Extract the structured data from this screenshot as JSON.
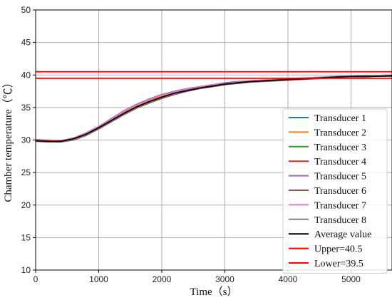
{
  "chart_data": {
    "type": "line",
    "title": "",
    "xlabel": "Time（s）",
    "ylabel": "Chamber temperature（℃）",
    "xlim": [
      0,
      5650
    ],
    "ylim": [
      10,
      50
    ],
    "xticks": [
      "0",
      "1000",
      "2000",
      "3000",
      "4000",
      "5000"
    ],
    "yticks": [
      "10",
      "15",
      "20",
      "25",
      "30",
      "35",
      "40",
      "45",
      "50"
    ],
    "grid": true,
    "legend_position": "bottom-right",
    "x": [
      0,
      200,
      400,
      600,
      800,
      1000,
      1200,
      1400,
      1600,
      1800,
      2000,
      2200,
      2400,
      2600,
      2800,
      3000,
      3200,
      3400,
      3600,
      3800,
      4000,
      4200,
      4400,
      4600,
      4800,
      5000,
      5200,
      5400,
      5650
    ],
    "series": [
      {
        "name": "Transducer 1",
        "color": "#1f77b4",
        "values": [
          29.9,
          29.8,
          29.8,
          30.2,
          30.9,
          31.9,
          33.0,
          34.1,
          35.1,
          35.9,
          36.6,
          37.2,
          37.6,
          38.0,
          38.3,
          38.6,
          38.8,
          39.0,
          39.1,
          39.2,
          39.3,
          39.4,
          39.5,
          39.6,
          39.7,
          39.8,
          39.8,
          39.8,
          39.9
        ]
      },
      {
        "name": "Transducer 2",
        "color": "#ff7f0e",
        "values": [
          30.1,
          30.0,
          29.9,
          30.3,
          31.0,
          32.0,
          33.1,
          34.2,
          35.2,
          36.0,
          36.7,
          37.3,
          37.7,
          38.1,
          38.4,
          38.7,
          38.9,
          39.1,
          39.2,
          39.3,
          39.4,
          39.5,
          39.6,
          39.7,
          39.8,
          39.8,
          39.9,
          39.9,
          40.0
        ]
      },
      {
        "name": "Transducer 3",
        "color": "#2ca02c",
        "values": [
          29.9,
          29.8,
          29.8,
          30.1,
          30.8,
          31.8,
          32.9,
          34.0,
          35.0,
          35.8,
          36.5,
          37.1,
          37.6,
          38.0,
          38.3,
          38.6,
          38.8,
          39.0,
          39.1,
          39.2,
          39.3,
          39.4,
          39.5,
          39.6,
          39.7,
          39.7,
          39.8,
          39.8,
          39.9
        ]
      },
      {
        "name": "Transducer 4",
        "color": "#d62728",
        "values": [
          30.0,
          29.9,
          29.8,
          30.2,
          30.9,
          31.9,
          33.0,
          34.1,
          35.1,
          35.9,
          36.6,
          37.2,
          37.7,
          38.1,
          38.4,
          38.6,
          38.8,
          39.0,
          39.1,
          39.2,
          39.3,
          39.4,
          39.5,
          39.6,
          39.7,
          39.8,
          39.8,
          39.9,
          39.9
        ]
      },
      {
        "name": "Transducer 5",
        "color": "#9467bd",
        "values": [
          30.0,
          29.9,
          29.9,
          30.3,
          31.1,
          32.1,
          33.3,
          34.5,
          35.5,
          36.3,
          37.0,
          37.5,
          37.9,
          38.2,
          38.5,
          38.8,
          39.0,
          39.1,
          39.2,
          39.3,
          39.4,
          39.5,
          39.6,
          39.7,
          39.8,
          39.8,
          39.9,
          39.9,
          40.0
        ]
      },
      {
        "name": "Transducer 6",
        "color": "#8c564b",
        "values": [
          29.8,
          29.7,
          29.7,
          30.0,
          30.7,
          31.7,
          32.8,
          33.9,
          34.9,
          35.7,
          36.4,
          37.0,
          37.5,
          37.9,
          38.2,
          38.5,
          38.7,
          38.9,
          39.0,
          39.1,
          39.2,
          39.3,
          39.4,
          39.5,
          39.6,
          39.7,
          39.7,
          39.8,
          39.8
        ]
      },
      {
        "name": "Transducer 7",
        "color": "#e377c2",
        "values": [
          30.0,
          29.9,
          29.9,
          30.3,
          31.1,
          32.1,
          33.2,
          34.4,
          35.4,
          36.2,
          36.9,
          37.4,
          37.8,
          38.2,
          38.5,
          38.7,
          38.9,
          39.1,
          39.2,
          39.3,
          39.4,
          39.5,
          39.6,
          39.7,
          39.7,
          39.8,
          39.9,
          39.9,
          40.0
        ]
      },
      {
        "name": "Transducer 8",
        "color": "#7f7f7f",
        "values": [
          29.9,
          29.8,
          29.8,
          30.1,
          30.8,
          31.8,
          32.9,
          34.0,
          35.0,
          35.8,
          36.5,
          37.1,
          37.6,
          38.0,
          38.3,
          38.6,
          38.8,
          39.0,
          39.1,
          39.2,
          39.3,
          39.4,
          39.5,
          39.6,
          39.7,
          39.7,
          39.8,
          39.8,
          39.9
        ]
      },
      {
        "name": "Average value",
        "color": "#000000",
        "values": [
          29.9,
          29.8,
          29.8,
          30.2,
          30.9,
          31.9,
          33.0,
          34.1,
          35.1,
          35.9,
          36.6,
          37.2,
          37.6,
          38.0,
          38.3,
          38.6,
          38.8,
          39.0,
          39.1,
          39.2,
          39.3,
          39.4,
          39.5,
          39.6,
          39.7,
          39.8,
          39.8,
          39.8,
          39.9
        ]
      },
      {
        "name": "Upper=40.5",
        "color": "#ff0000",
        "values": [
          40.5,
          40.5,
          40.5,
          40.5,
          40.5,
          40.5,
          40.5,
          40.5,
          40.5,
          40.5,
          40.5,
          40.5,
          40.5,
          40.5,
          40.5,
          40.5,
          40.5,
          40.5,
          40.5,
          40.5,
          40.5,
          40.5,
          40.5,
          40.5,
          40.5,
          40.5,
          40.5,
          40.5,
          40.5
        ]
      },
      {
        "name": "Lower=39.5",
        "color": "#ff0000",
        "values": [
          39.5,
          39.5,
          39.5,
          39.5,
          39.5,
          39.5,
          39.5,
          39.5,
          39.5,
          39.5,
          39.5,
          39.5,
          39.5,
          39.5,
          39.5,
          39.5,
          39.5,
          39.5,
          39.5,
          39.5,
          39.5,
          39.5,
          39.5,
          39.5,
          39.5,
          39.5,
          39.5,
          39.5,
          39.5
        ]
      }
    ]
  }
}
